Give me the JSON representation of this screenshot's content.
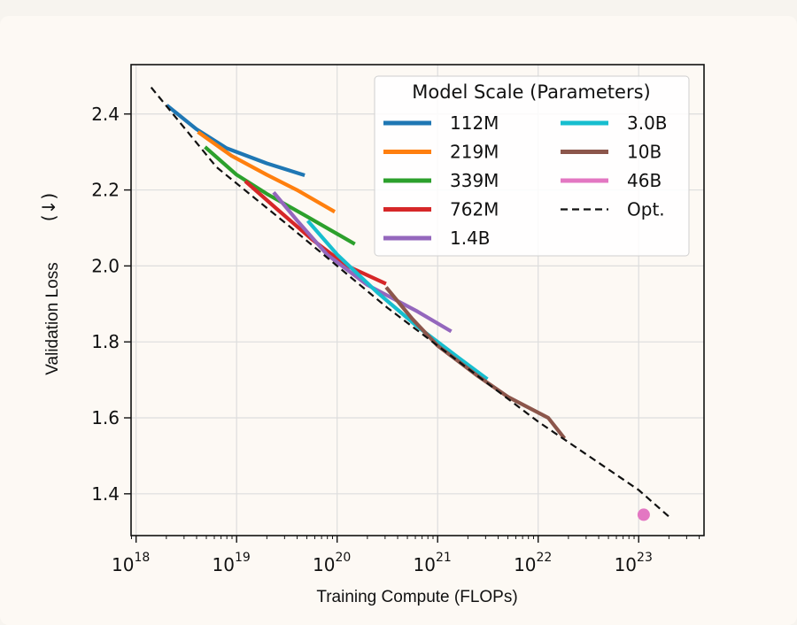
{
  "chart_data": {
    "type": "line",
    "xlabel": "Training Compute (FLOPs)",
    "ylabel": "Validation Loss",
    "ylabel_arrow": "(↓)",
    "xscale": "log",
    "xlim_log10": [
      17.95,
      23.65
    ],
    "ylim": [
      1.29,
      2.53
    ],
    "x_ticks": [
      {
        "base": "10",
        "exp": "18",
        "log": 18
      },
      {
        "base": "10",
        "exp": "19",
        "log": 19
      },
      {
        "base": "10",
        "exp": "20",
        "log": 20
      },
      {
        "base": "10",
        "exp": "21",
        "log": 21
      },
      {
        "base": "10",
        "exp": "22",
        "log": 22
      },
      {
        "base": "10",
        "exp": "23",
        "log": 23
      }
    ],
    "y_ticks": [
      {
        "label": "1.4",
        "value": 1.4
      },
      {
        "label": "1.6",
        "value": 1.6
      },
      {
        "label": "1.8",
        "value": 1.8
      },
      {
        "label": "2.0",
        "value": 2.0
      },
      {
        "label": "2.2",
        "value": 2.2
      },
      {
        "label": "2.4",
        "value": 2.4
      }
    ],
    "grid": true,
    "legend_title": "Model Scale (Parameters)",
    "legend_position": "top-right",
    "series": [
      {
        "name": "112M",
        "color": "#1f77b4",
        "points": [
          [
            18.32,
            2.42
          ],
          [
            18.6,
            2.36
          ],
          [
            18.9,
            2.31
          ],
          [
            19.3,
            2.27
          ],
          [
            19.66,
            2.24
          ]
        ]
      },
      {
        "name": "219M",
        "color": "#ff7f0e",
        "points": [
          [
            18.63,
            2.35
          ],
          [
            18.95,
            2.29
          ],
          [
            19.3,
            2.24
          ],
          [
            19.6,
            2.2
          ],
          [
            19.96,
            2.145
          ]
        ]
      },
      {
        "name": "339M",
        "color": "#2ca02c",
        "points": [
          [
            18.7,
            2.31
          ],
          [
            19.0,
            2.24
          ],
          [
            19.3,
            2.19
          ],
          [
            19.7,
            2.13
          ],
          [
            20.16,
            2.06
          ]
        ]
      },
      {
        "name": "762M",
        "color": "#d62728",
        "points": [
          [
            19.1,
            2.22
          ],
          [
            19.4,
            2.15
          ],
          [
            19.75,
            2.07
          ],
          [
            20.1,
            2.0
          ],
          [
            20.47,
            1.955
          ]
        ]
      },
      {
        "name": "1.4B",
        "color": "#9467bd",
        "points": [
          [
            19.38,
            2.19
          ],
          [
            19.6,
            2.12
          ],
          [
            19.9,
            2.03
          ],
          [
            20.3,
            1.95
          ],
          [
            20.8,
            1.88
          ],
          [
            21.12,
            1.83
          ]
        ]
      },
      {
        "name": "3.0B",
        "color": "#17becf",
        "points": [
          [
            19.72,
            2.115
          ],
          [
            20.0,
            2.03
          ],
          [
            20.4,
            1.93
          ],
          [
            20.8,
            1.84
          ],
          [
            21.2,
            1.76
          ],
          [
            21.48,
            1.705
          ]
        ]
      },
      {
        "name": "10B",
        "color": "#8c564b",
        "points": [
          [
            20.5,
            1.94
          ],
          [
            20.75,
            1.86
          ],
          [
            21.0,
            1.79
          ],
          [
            21.4,
            1.71
          ],
          [
            21.7,
            1.655
          ],
          [
            22.1,
            1.6
          ],
          [
            22.25,
            1.55
          ]
        ]
      },
      {
        "name": "46B",
        "color": "#e377c2",
        "marker": "dot",
        "points": [
          [
            23.05,
            1.345
          ]
        ]
      },
      {
        "name": "Opt.",
        "color": "#111111",
        "dashed": true,
        "points": [
          [
            18.15,
            2.47
          ],
          [
            18.8,
            2.26
          ],
          [
            19.5,
            2.11
          ],
          [
            20.0,
            2.0
          ],
          [
            20.5,
            1.89
          ],
          [
            21.0,
            1.79
          ],
          [
            21.5,
            1.69
          ],
          [
            22.0,
            1.59
          ],
          [
            22.5,
            1.5
          ],
          [
            23.0,
            1.41
          ],
          [
            23.3,
            1.34
          ]
        ]
      }
    ]
  }
}
